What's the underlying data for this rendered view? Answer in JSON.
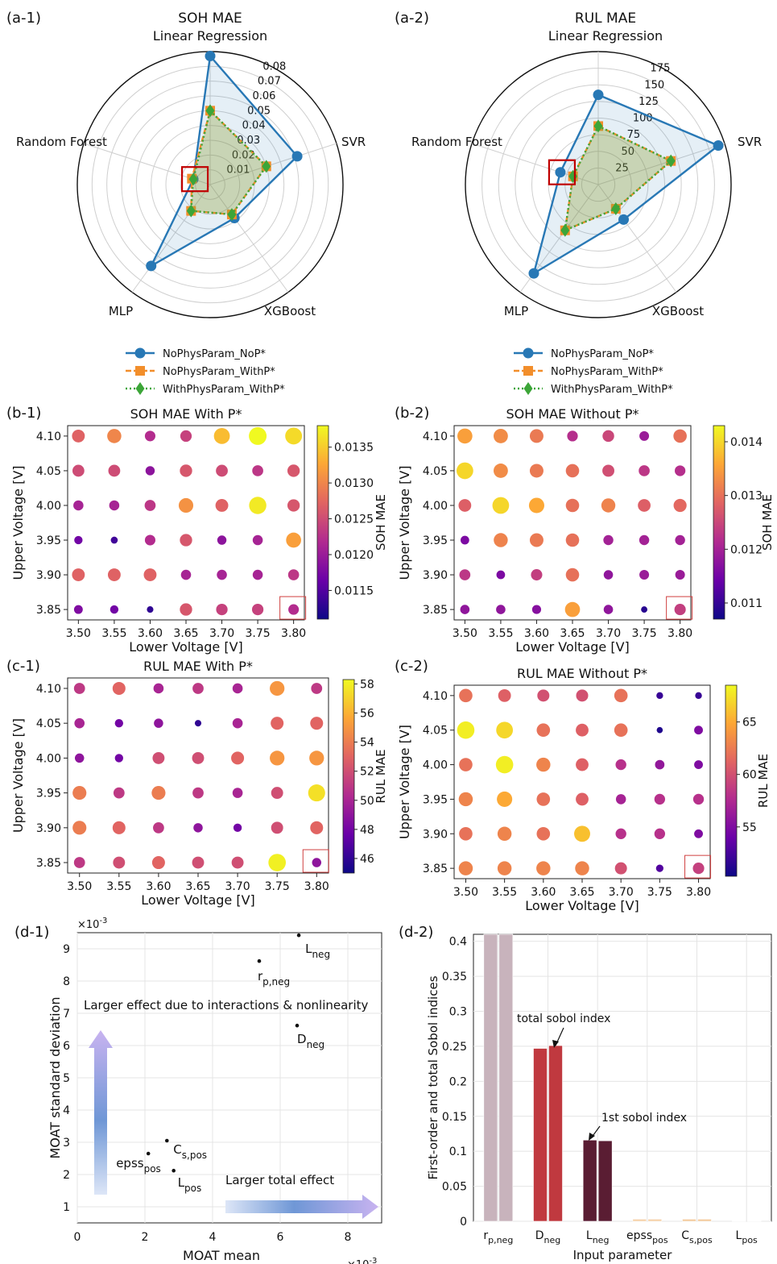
{
  "panel_labels": {
    "a1": "(a-1)",
    "a2": "(a-2)",
    "b1": "(b-1)",
    "b2": "(b-2)",
    "c1": "(c-1)",
    "c2": "(c-2)",
    "d1": "(d-1)",
    "d2": "(d-2)"
  },
  "chart_data": [
    {
      "id": "a1",
      "type": "radar",
      "title": "SOH MAE",
      "axes": [
        "Linear Regression",
        "SVR",
        "XGBoost",
        "MLP",
        "Random Forest"
      ],
      "rlim": [
        0,
        0.09
      ],
      "rticks": [
        "0.01",
        "0.02",
        "0.03",
        "0.04",
        "0.05",
        "0.06",
        "0.07",
        "0.08"
      ],
      "rtick_values": [
        0.01,
        0.02,
        0.03,
        0.04,
        0.05,
        0.06,
        0.07,
        0.08
      ],
      "legend": [
        "NoPhysParam_NoP*",
        "NoPhysParam_WithP*",
        "WithPhysParam_WithP*"
      ],
      "series": [
        {
          "name": "NoPhysParam_NoP*",
          "color": "#2878b5",
          "marker": "circle",
          "values": [
            0.087,
            0.062,
            0.028,
            0.068,
            0.012
          ]
        },
        {
          "name": "NoPhysParam_WithP*",
          "color": "#f28e2b",
          "marker": "square",
          "values": [
            0.05,
            0.04,
            0.025,
            0.022,
            0.013
          ]
        },
        {
          "name": "WithPhysParam_WithP*",
          "color": "#3ca538",
          "marker": "diamond",
          "values": [
            0.05,
            0.04,
            0.025,
            0.022,
            0.012
          ]
        }
      ],
      "highlight_axis": "Random Forest"
    },
    {
      "id": "a2",
      "type": "radar",
      "title": "RUL MAE",
      "axes": [
        "Linear Regression",
        "SVR",
        "XGBoost",
        "MLP",
        "Random Forest"
      ],
      "rlim": [
        0,
        200
      ],
      "rticks": [
        "25",
        "50",
        "75",
        "100",
        "125",
        "150",
        "175"
      ],
      "rtick_values": [
        25,
        50,
        75,
        100,
        125,
        150,
        175
      ],
      "legend": [
        "NoPhysParam_NoP*",
        "NoPhysParam_WithP*",
        "WithPhysParam_WithP*"
      ],
      "series": [
        {
          "name": "NoPhysParam_NoP*",
          "color": "#2878b5",
          "marker": "circle",
          "values": [
            135,
            190,
            65,
            165,
            60
          ]
        },
        {
          "name": "NoPhysParam_WithP*",
          "color": "#f28e2b",
          "marker": "square",
          "values": [
            88,
            115,
            45,
            85,
            40
          ]
        },
        {
          "name": "WithPhysParam_WithP*",
          "color": "#3ca538",
          "marker": "diamond",
          "values": [
            88,
            115,
            45,
            85,
            40
          ]
        }
      ],
      "highlight_axis": "Random Forest"
    },
    {
      "id": "b1",
      "type": "scatter",
      "title": "SOH MAE With P*",
      "xlabel": "Lower Voltage [V]",
      "ylabel": "Upper Voltage [V]",
      "colorbar_label": "SOH MAE",
      "x": [
        3.5,
        3.55,
        3.6,
        3.65,
        3.7,
        3.75,
        3.8
      ],
      "y": [
        4.1,
        4.05,
        4.0,
        3.95,
        3.9,
        3.85
      ],
      "xticks": [
        "3.50",
        "3.55",
        "3.60",
        "3.65",
        "3.70",
        "3.75",
        "3.80"
      ],
      "yticks": [
        "4.10",
        "4.05",
        "4.00",
        "3.95",
        "3.90",
        "3.85"
      ],
      "vrange": [
        0.0111,
        0.0138
      ],
      "cbar_ticks": [
        "0.0115",
        "0.0120",
        "0.0125",
        "0.0130",
        "0.0135"
      ],
      "cbar_values": [
        0.0115,
        0.012,
        0.0125,
        0.013,
        0.0135
      ],
      "values": [
        [
          0.0127,
          0.013,
          0.0122,
          0.0124,
          0.0134,
          0.0138,
          0.0136
        ],
        [
          0.0125,
          0.0125,
          0.0119,
          0.0126,
          0.0125,
          0.0123,
          0.0126
        ],
        [
          0.0121,
          0.0121,
          0.0123,
          0.0131,
          0.0127,
          0.0137,
          0.0126
        ],
        [
          0.0117,
          0.0114,
          0.0122,
          0.0126,
          0.0119,
          0.0121,
          0.0132
        ],
        [
          0.0127,
          0.0127,
          0.0127,
          0.0121,
          0.0121,
          0.0121,
          0.0123
        ],
        [
          0.0118,
          0.0117,
          0.0113,
          0.0126,
          0.0124,
          0.0124,
          0.0122
        ]
      ],
      "highlight_point": [
        3.8,
        3.85
      ]
    },
    {
      "id": "b2",
      "type": "scatter",
      "title": "SOH MAE Without P*",
      "xlabel": "Lower Voltage [V]",
      "ylabel": "Upper Voltage [V]",
      "colorbar_label": "SOH MAE",
      "x": [
        3.5,
        3.55,
        3.6,
        3.65,
        3.7,
        3.75,
        3.8
      ],
      "y": [
        4.1,
        4.05,
        4.0,
        3.95,
        3.9,
        3.85
      ],
      "xticks": [
        "3.50",
        "3.55",
        "3.60",
        "3.65",
        "3.70",
        "3.75",
        "3.80"
      ],
      "yticks": [
        "4.10",
        "4.05",
        "4.00",
        "3.95",
        "3.90",
        "3.85"
      ],
      "vrange": [
        0.0107,
        0.0143
      ],
      "cbar_ticks": [
        "0.011",
        "0.012",
        "0.013",
        "0.014"
      ],
      "cbar_values": [
        0.011,
        0.012,
        0.013,
        0.014
      ],
      "values": [
        [
          0.0135,
          0.0133,
          0.0131,
          0.0122,
          0.0125,
          0.0119,
          0.013
        ],
        [
          0.014,
          0.0133,
          0.0131,
          0.013,
          0.0126,
          0.0123,
          0.0122
        ],
        [
          0.0128,
          0.014,
          0.0136,
          0.013,
          0.0132,
          0.0128,
          0.0129
        ],
        [
          0.0116,
          0.0132,
          0.0131,
          0.013,
          0.012,
          0.012,
          0.012
        ],
        [
          0.0123,
          0.0116,
          0.0124,
          0.013,
          0.0118,
          0.0119,
          0.0119
        ],
        [
          0.0118,
          0.0118,
          0.0117,
          0.0135,
          0.0118,
          0.0109,
          0.0124
        ]
      ],
      "highlight_point": [
        3.8,
        3.85
      ]
    },
    {
      "id": "c1",
      "type": "scatter",
      "title": "RUL MAE With P*",
      "xlabel": "Lower Voltage [V]",
      "ylabel": "Upper Voltage [V]",
      "colorbar_label": "RUL MAE",
      "x": [
        3.5,
        3.55,
        3.6,
        3.65,
        3.7,
        3.75,
        3.8
      ],
      "y": [
        4.1,
        4.05,
        4.0,
        3.95,
        3.9,
        3.85
      ],
      "xticks": [
        "3.50",
        "3.55",
        "3.60",
        "3.65",
        "3.70",
        "3.75",
        "3.80"
      ],
      "yticks": [
        "4.10",
        "4.05",
        "4.00",
        "3.95",
        "3.90",
        "3.85"
      ],
      "vrange": [
        45,
        58.3
      ],
      "cbar_ticks": [
        "46",
        "48",
        "50",
        "52",
        "54",
        "56",
        "58"
      ],
      "cbar_values": [
        46,
        48,
        50,
        52,
        54,
        56,
        58
      ],
      "values": [
        [
          51.0,
          53.0,
          50.0,
          51.0,
          50.0,
          55.0,
          51.0
        ],
        [
          50.0,
          48.0,
          49.0,
          46.0,
          50.0,
          53.0,
          53.0
        ],
        [
          49.0,
          48.0,
          52.0,
          52.0,
          53.0,
          55.0,
          55.0
        ],
        [
          54.0,
          51.0,
          54.0,
          51.0,
          50.0,
          52.0,
          57.5
        ],
        [
          54.0,
          53.0,
          51.0,
          49.0,
          48.0,
          52.0,
          53.0
        ],
        [
          51.0,
          52.0,
          53.0,
          52.0,
          52.0,
          58.0,
          49.0
        ]
      ],
      "highlight_point": [
        3.8,
        3.85
      ]
    },
    {
      "id": "c2",
      "type": "scatter",
      "title": "RUL MAE Without P*",
      "xlabel": "Lower Voltage [V]",
      "ylabel": "Upper Voltage [V]",
      "colorbar_label": "RUL MAE",
      "x": [
        3.5,
        3.55,
        3.6,
        3.65,
        3.7,
        3.75,
        3.8
      ],
      "y": [
        4.1,
        4.05,
        4.0,
        3.95,
        3.9,
        3.85
      ],
      "xticks": [
        "3.50",
        "3.55",
        "3.60",
        "3.65",
        "3.70",
        "3.75",
        "3.80"
      ],
      "yticks": [
        "4.10",
        "4.05",
        "4.00",
        "3.95",
        "3.90",
        "3.85"
      ],
      "vrange": [
        50.3,
        68.5
      ],
      "cbar_ticks": [
        "55",
        "60",
        "65"
      ],
      "cbar_values": [
        55,
        60,
        65
      ],
      "values": [
        [
          62.0,
          61.0,
          60.0,
          60.0,
          62.0,
          52.0,
          52.0
        ],
        [
          68.0,
          67.0,
          62.0,
          61.0,
          62.0,
          51.0,
          55.0
        ],
        [
          62.0,
          68.0,
          63.0,
          61.0,
          58.0,
          56.0,
          55.0
        ],
        [
          63.0,
          65.0,
          62.0,
          61.0,
          57.0,
          58.0,
          58.0
        ],
        [
          62.0,
          63.0,
          62.0,
          66.0,
          58.0,
          58.0,
          55.0
        ],
        [
          63.0,
          63.0,
          63.0,
          63.0,
          60.0,
          53.0,
          59.0
        ]
      ],
      "highlight_point": [
        3.8,
        3.85
      ]
    },
    {
      "id": "d1",
      "type": "scatter",
      "xlabel": "MOAT mean",
      "ylabel": "MOAT standard deviation",
      "x_multiplier": "×10",
      "y_multiplier": "×10",
      "multiplier_exp": "-3",
      "xlim": [
        0,
        9
      ],
      "ylim": [
        0.5,
        9.5
      ],
      "xticks": [
        "0",
        "2",
        "4",
        "6",
        "8"
      ],
      "xtick_values": [
        0,
        2,
        4,
        6,
        8
      ],
      "yticks": [
        "1",
        "2",
        "3",
        "4",
        "5",
        "6",
        "7",
        "8",
        "9"
      ],
      "ytick_values": [
        1,
        2,
        3,
        4,
        5,
        6,
        7,
        8,
        9
      ],
      "points": [
        {
          "x": 6.55,
          "y": 9.42,
          "base": "L",
          "sub": "neg"
        },
        {
          "x": 5.38,
          "y": 8.62,
          "base": "r",
          "sub": "p,neg"
        },
        {
          "x": 6.5,
          "y": 6.62,
          "base": "D",
          "sub": "neg"
        },
        {
          "x": 2.65,
          "y": 3.05,
          "base": "C",
          "sub": "s,pos"
        },
        {
          "x": 2.1,
          "y": 2.65,
          "base": "epss",
          "sub": "pos"
        },
        {
          "x": 2.85,
          "y": 2.12,
          "base": "L",
          "sub": "pos"
        }
      ],
      "annotations": {
        "interaction": "Larger effect due to interactions & nonlinearity",
        "total": "Larger total effect"
      }
    },
    {
      "id": "d2",
      "type": "bar",
      "xlabel": "Input parameter",
      "ylabel": "First-order and total Sobol indices",
      "ylim": [
        0,
        0.41
      ],
      "yticks": [
        "0",
        "0.05",
        "0.1",
        "0.15",
        "0.2",
        "0.25",
        "0.3",
        "0.35",
        "0.4"
      ],
      "ytick_values": [
        0,
        0.05,
        0.1,
        0.15,
        0.2,
        0.25,
        0.3,
        0.35,
        0.4
      ],
      "categories": [
        {
          "base": "r",
          "sub": "p,neg"
        },
        {
          "base": "D",
          "sub": "neg"
        },
        {
          "base": "L",
          "sub": "neg"
        },
        {
          "base": "epss",
          "sub": "pos"
        },
        {
          "base": "C",
          "sub": "s,pos"
        },
        {
          "base": "L",
          "sub": "pos"
        }
      ],
      "series": [
        {
          "name": "1st sobol index",
          "values": [
            0.41,
            0.247,
            0.116,
            0.003,
            0.003,
            0.0005
          ]
        },
        {
          "name": "total sobol index",
          "values": [
            0.41,
            0.251,
            0.115,
            0.003,
            0.003,
            0.0005
          ]
        }
      ],
      "colors": [
        "#c8b3bc",
        "#c0393f",
        "#5a1d33",
        "#f5cfa6",
        "#f3c99a",
        "#f6d2b4"
      ],
      "annotations": {
        "total": "total sobol index",
        "first": "1st sobol index"
      }
    }
  ]
}
